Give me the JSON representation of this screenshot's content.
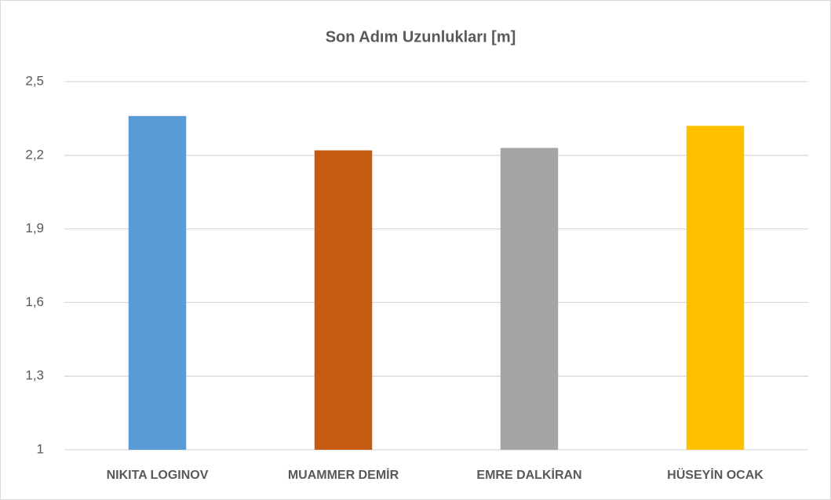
{
  "chart_data": {
    "type": "bar",
    "title": "Son Adım Uzunlukları [m]",
    "categories": [
      "NIKITA LOGINOV",
      "MUAMMER DEMİR",
      "EMRE DALKİRAN",
      "HÜSEYİN OCAK"
    ],
    "values": [
      2.36,
      2.22,
      2.23,
      2.32
    ],
    "colors": [
      "#5b9bd5",
      "#c55a11",
      "#a5a5a5",
      "#ffc000"
    ],
    "ylim": [
      1,
      2.5
    ],
    "yticks": [
      1,
      {
        "value": 1.3,
        "label": "1,3"
      },
      {
        "value": 1.6,
        "label": "1,6"
      },
      {
        "value": 1.9,
        "label": "1,9"
      },
      {
        "value": 2.2,
        "label": "2,2"
      },
      {
        "value": 2.5,
        "label": "2,5"
      }
    ],
    "grid": true
  }
}
